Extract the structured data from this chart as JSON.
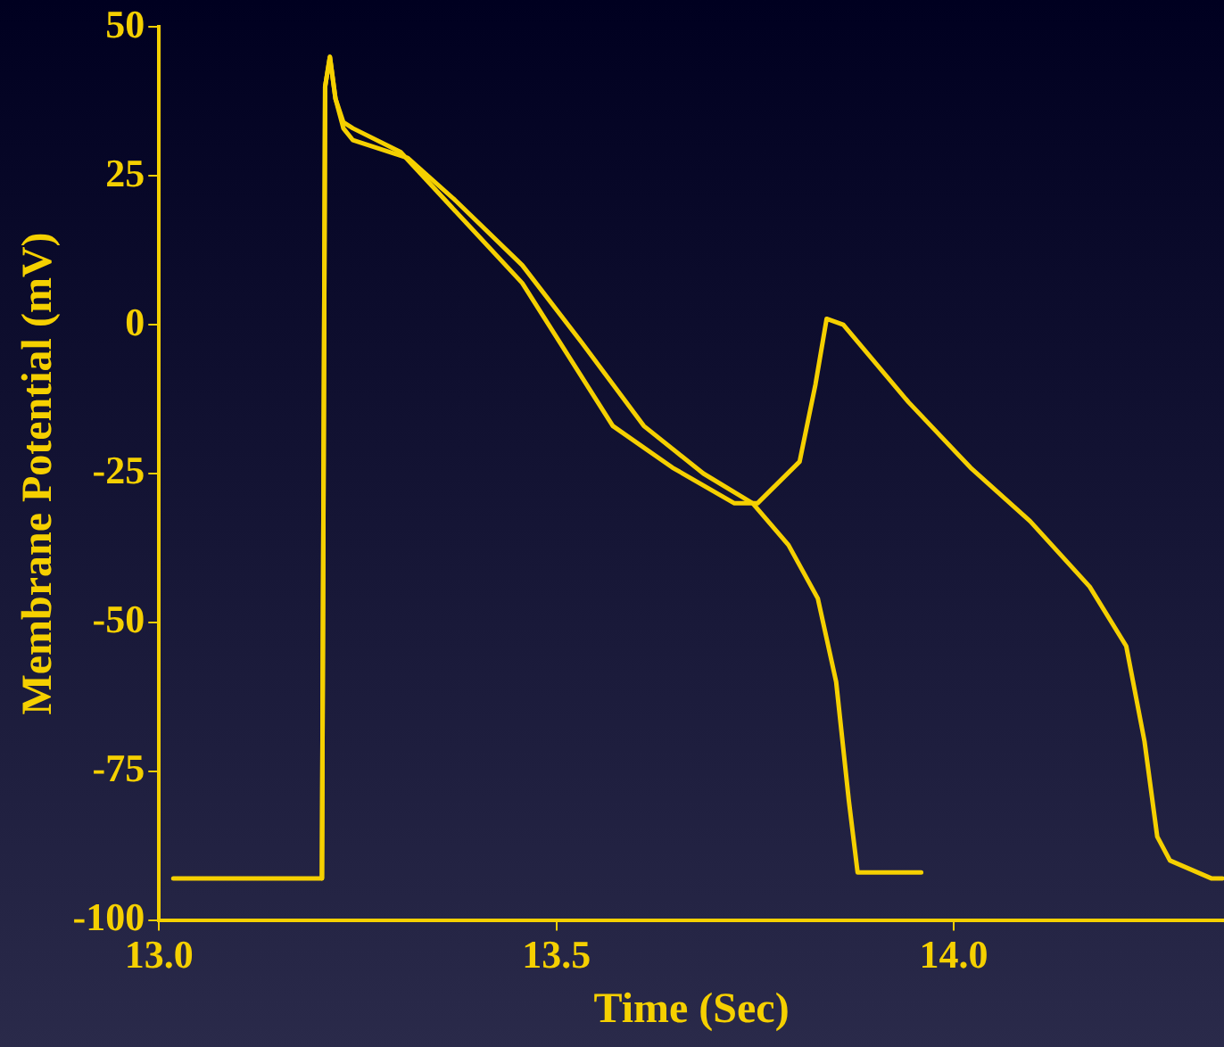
{
  "chart_data": {
    "type": "line",
    "xlabel": "Time (Sec)",
    "ylabel": "Membrane Potential (mV)",
    "xlim": [
      13.0,
      14.34
    ],
    "xticks": [
      {
        "value": 13,
        "label": "13.0"
      },
      {
        "value": 13.5,
        "label": "13.5"
      },
      {
        "value": 14,
        "label": "14.0"
      }
    ],
    "ylim": [
      -100,
      50
    ],
    "yticks": [
      50,
      25,
      0,
      -25,
      -50,
      -75,
      -100
    ],
    "grid": false,
    "legend": false,
    "marker": "none",
    "line_style": "solid",
    "series": [
      {
        "color": "#f5d000",
        "x": [
          13.018,
          13.205,
          13.209,
          13.215,
          13.222,
          13.232,
          13.244,
          13.313,
          13.372,
          13.457,
          13.532,
          13.61,
          13.685,
          13.747,
          13.792,
          13.829,
          13.852,
          13.868,
          13.879,
          13.959
        ],
        "values": [
          -93,
          -93,
          40,
          45,
          38,
          33,
          31,
          28,
          21,
          10,
          -3,
          -17,
          -25,
          -30,
          -37,
          -46,
          -60,
          -80,
          -92,
          -92
        ]
      },
      {
        "color": "#f5d000",
        "x": [
          13.205,
          13.209,
          13.215,
          13.222,
          13.232,
          13.244,
          13.304,
          13.457,
          13.571,
          13.646,
          13.724,
          13.753,
          13.806,
          13.826,
          13.84,
          13.861,
          13.943,
          14.021,
          14.096,
          14.171,
          14.217,
          14.24,
          14.256,
          14.272,
          14.324,
          14.338
        ],
        "values": [
          -93,
          40,
          45,
          38,
          34,
          33,
          29,
          7,
          -17,
          -24,
          -30,
          -30,
          -23,
          -10,
          1,
          0,
          -13,
          -24,
          -33,
          -44,
          -54,
          -70,
          -86,
          -90,
          -93,
          -93
        ]
      }
    ]
  }
}
